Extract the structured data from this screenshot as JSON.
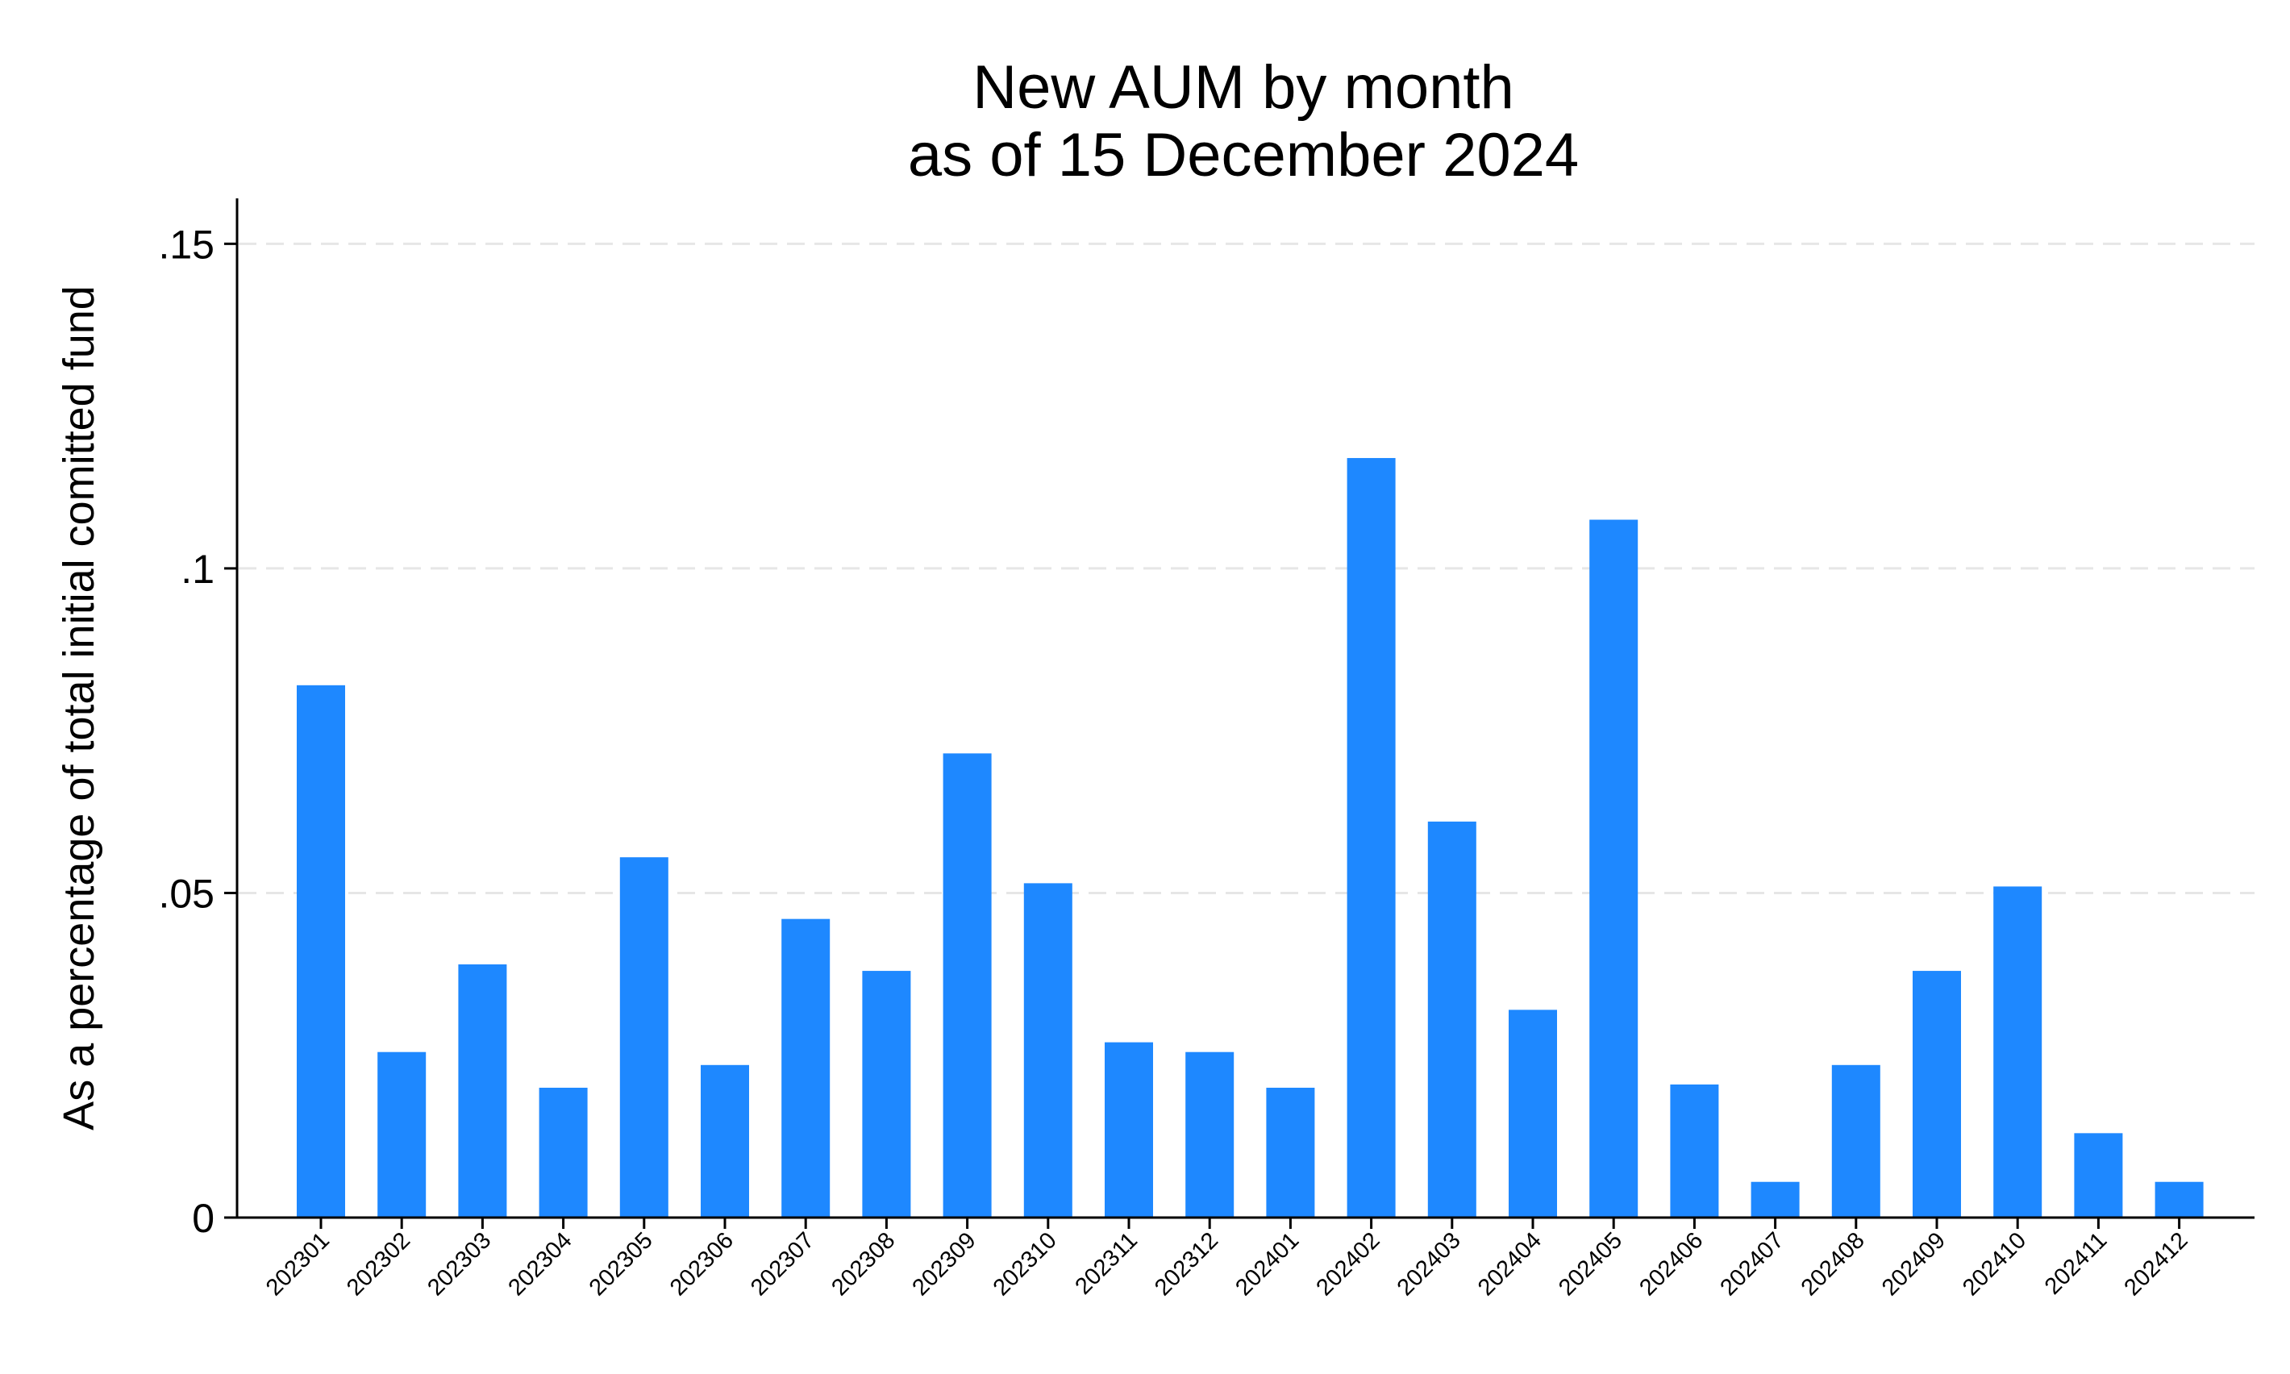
{
  "chart_data": {
    "type": "bar",
    "title": "New AUM by month",
    "subtitle": "as of 15 December 2024",
    "xlabel": "",
    "ylabel": "As a percentage of total initial comitted fund",
    "ylim": [
      0,
      0.157
    ],
    "yticks": [
      0,
      0.05,
      0.1,
      0.15
    ],
    "ytick_labels": [
      "0",
      ".05",
      ".1",
      ".15"
    ],
    "grid": true,
    "legend": "none",
    "bar_color": "#1e88ff",
    "categories": [
      "202301",
      "202302",
      "202303",
      "202304",
      "202305",
      "202306",
      "202307",
      "202308",
      "202309",
      "202310",
      "202311",
      "202312",
      "202401",
      "202402",
      "202403",
      "202404",
      "202405",
      "202406",
      "202407",
      "202408",
      "202409",
      "202410",
      "202411",
      "202412"
    ],
    "values": [
      0.082,
      0.0255,
      0.039,
      0.02,
      0.0555,
      0.0235,
      0.046,
      0.038,
      0.0715,
      0.0515,
      0.027,
      0.0255,
      0.02,
      0.117,
      0.061,
      0.032,
      0.1075,
      0.0205,
      0.0055,
      0.0235,
      0.038,
      0.051,
      0.013,
      0.0055
    ]
  }
}
